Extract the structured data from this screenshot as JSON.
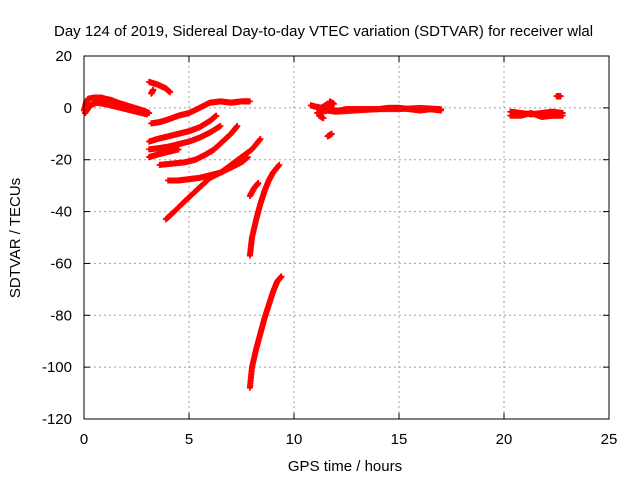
{
  "chart_data": {
    "type": "scatter",
    "title": "Day 124 of 2019, Sidereal Day-to-day VTEC variation (SDTVAR) for receiver wlal",
    "xlabel": "GPS time / hours",
    "ylabel": "SDTVAR / TECUs",
    "xlim": [
      0,
      25
    ],
    "ylim": [
      -120,
      20
    ],
    "xticks": [
      0,
      5,
      10,
      15,
      20,
      25
    ],
    "yticks": [
      20,
      0,
      -20,
      -40,
      -60,
      -80,
      -100,
      -120
    ],
    "grid": true,
    "marker": "plus",
    "color": "#ff0000",
    "series": [
      {
        "points": [
          [
            0.0,
            -1
          ],
          [
            0.1,
            2
          ],
          [
            0.2,
            3.5
          ],
          [
            0.5,
            4
          ],
          [
            0.8,
            4
          ],
          [
            1.0,
            3.5
          ],
          [
            1.3,
            3
          ],
          [
            1.6,
            2
          ],
          [
            2.0,
            1
          ],
          [
            2.4,
            0
          ],
          [
            2.8,
            -1
          ],
          [
            3.1,
            -2
          ]
        ]
      },
      {
        "points": [
          [
            0.05,
            -2
          ],
          [
            0.3,
            1
          ],
          [
            0.6,
            2
          ],
          [
            1.0,
            1.5
          ],
          [
            1.5,
            0.5
          ],
          [
            2.0,
            -0.5
          ],
          [
            2.5,
            -1.5
          ],
          [
            3.0,
            -2.5
          ]
        ]
      },
      {
        "points": [
          [
            3.1,
            10
          ],
          [
            3.5,
            9
          ],
          [
            3.9,
            7.5
          ],
          [
            4.1,
            6
          ]
        ]
      },
      {
        "points": [
          [
            3.2,
            5.5
          ],
          [
            3.3,
            7
          ]
        ]
      },
      {
        "points": [
          [
            3.2,
            -6
          ],
          [
            3.6,
            -5.5
          ],
          [
            4.0,
            -4.5
          ],
          [
            4.5,
            -3
          ],
          [
            5.0,
            -2
          ],
          [
            5.5,
            0
          ],
          [
            6.0,
            2
          ],
          [
            6.5,
            2.5
          ],
          [
            7.0,
            2
          ],
          [
            7.5,
            2.5
          ],
          [
            7.9,
            2.5
          ]
        ]
      },
      {
        "points": [
          [
            3.1,
            -13
          ],
          [
            3.5,
            -12
          ],
          [
            4.0,
            -11
          ],
          [
            4.5,
            -10
          ],
          [
            5.0,
            -9
          ],
          [
            5.5,
            -7.5
          ],
          [
            6.0,
            -5
          ],
          [
            6.3,
            -3
          ]
        ]
      },
      {
        "points": [
          [
            3.1,
            -16
          ],
          [
            3.6,
            -15.5
          ],
          [
            4.0,
            -15
          ],
          [
            4.5,
            -14
          ],
          [
            5.0,
            -13
          ],
          [
            5.5,
            -11.5
          ],
          [
            6.0,
            -9.5
          ],
          [
            6.5,
            -7
          ]
        ]
      },
      {
        "points": [
          [
            3.1,
            -19
          ],
          [
            3.5,
            -18
          ],
          [
            4.0,
            -17
          ],
          [
            4.5,
            -16
          ]
        ]
      },
      {
        "points": [
          [
            3.6,
            -22
          ],
          [
            4.2,
            -21.5
          ],
          [
            4.8,
            -21
          ],
          [
            5.3,
            -20
          ],
          [
            5.8,
            -18
          ],
          [
            6.2,
            -16
          ],
          [
            6.6,
            -13
          ],
          [
            7.0,
            -10
          ],
          [
            7.3,
            -7
          ]
        ]
      },
      {
        "points": [
          [
            4.0,
            -28
          ],
          [
            4.5,
            -28
          ],
          [
            5.0,
            -27.5
          ],
          [
            5.5,
            -27
          ],
          [
            6.0,
            -26
          ],
          [
            6.5,
            -25
          ],
          [
            7.0,
            -23
          ],
          [
            7.5,
            -21
          ],
          [
            7.8,
            -19
          ]
        ]
      },
      {
        "points": [
          [
            3.9,
            -43
          ],
          [
            4.3,
            -40
          ],
          [
            4.8,
            -36
          ],
          [
            5.2,
            -33
          ],
          [
            5.6,
            -30
          ],
          [
            6.0,
            -27
          ],
          [
            6.5,
            -25
          ],
          [
            7.0,
            -22
          ],
          [
            7.5,
            -19
          ],
          [
            8.0,
            -16
          ],
          [
            8.4,
            -12
          ]
        ]
      },
      {
        "points": [
          [
            7.9,
            -34
          ],
          [
            8.1,
            -31
          ],
          [
            8.3,
            -29
          ]
        ]
      },
      {
        "points": [
          [
            7.9,
            -57
          ],
          [
            8.0,
            -50
          ],
          [
            8.2,
            -43
          ],
          [
            8.4,
            -37
          ],
          [
            8.6,
            -32
          ],
          [
            8.8,
            -28
          ],
          [
            9.0,
            -25
          ],
          [
            9.3,
            -22
          ]
        ]
      },
      {
        "points": [
          [
            7.9,
            -108
          ],
          [
            8.0,
            -100
          ],
          [
            8.2,
            -93
          ],
          [
            8.4,
            -87
          ],
          [
            8.6,
            -81
          ],
          [
            8.8,
            -76
          ],
          [
            9.0,
            -71
          ],
          [
            9.2,
            -67
          ],
          [
            9.4,
            -65
          ]
        ]
      },
      {
        "points": [
          [
            10.8,
            1
          ],
          [
            11.0,
            0.5
          ],
          [
            11.3,
            0
          ],
          [
            11.6,
            1.5
          ],
          [
            11.9,
            -1
          ],
          [
            12.2,
            -1
          ],
          [
            12.5,
            -0.5
          ],
          [
            13.0,
            -0.5
          ],
          [
            13.5,
            -0.5
          ],
          [
            14.0,
            -0.5
          ],
          [
            14.5,
            0
          ],
          [
            15.0,
            0
          ],
          [
            15.5,
            -0.5
          ],
          [
            16.0,
            -1
          ],
          [
            16.5,
            -0.5
          ],
          [
            17.0,
            -1
          ]
        ]
      },
      {
        "points": [
          [
            11.1,
            -2
          ],
          [
            11.6,
            -1
          ],
          [
            12.0,
            -1.5
          ],
          [
            13.0,
            -1
          ],
          [
            14.0,
            -0.5
          ],
          [
            15.0,
            -0.5
          ],
          [
            16.0,
            0
          ],
          [
            17.0,
            -0.5
          ]
        ]
      },
      {
        "points": [
          [
            11.7,
            2.5
          ],
          [
            11.9,
            1.5
          ]
        ]
      },
      {
        "points": [
          [
            11.2,
            -3
          ],
          [
            11.4,
            -4
          ]
        ]
      },
      {
        "points": [
          [
            11.6,
            -11
          ],
          [
            11.8,
            -10
          ]
        ]
      },
      {
        "points": [
          [
            20.3,
            -1.5
          ],
          [
            20.8,
            -2
          ],
          [
            21.3,
            -2.5
          ],
          [
            21.8,
            -2
          ],
          [
            22.3,
            -1.5
          ],
          [
            22.8,
            -2
          ]
        ]
      },
      {
        "points": [
          [
            20.3,
            -3
          ],
          [
            20.8,
            -3
          ],
          [
            21.3,
            -2
          ],
          [
            21.8,
            -3.5
          ],
          [
            22.3,
            -3
          ],
          [
            22.8,
            -3
          ]
        ]
      },
      {
        "points": [
          [
            22.5,
            4.5
          ],
          [
            22.7,
            4.5
          ]
        ]
      }
    ]
  }
}
